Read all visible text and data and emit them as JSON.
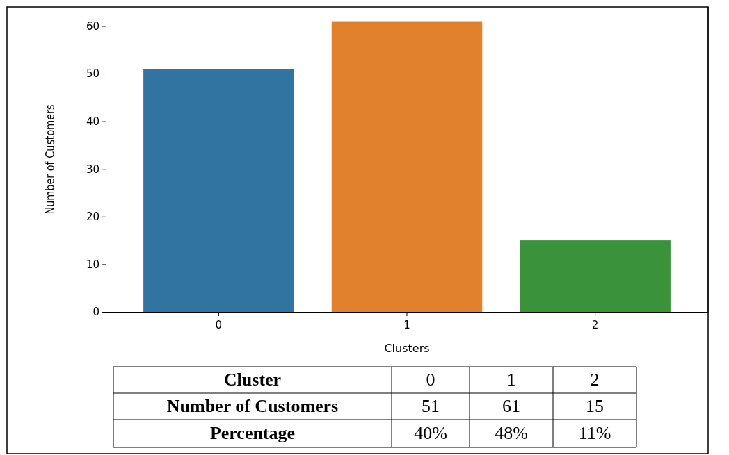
{
  "chart_data": {
    "type": "bar",
    "xlabel": "Clusters",
    "ylabel": "Number of Customers",
    "categories": [
      "0",
      "1",
      "2"
    ],
    "values": [
      51,
      61,
      15
    ],
    "colors": [
      "#3274a1",
      "#e1812c",
      "#3a923a"
    ],
    "ylim": [
      0,
      64
    ],
    "yticks": [
      0,
      10,
      20,
      30,
      40,
      50,
      60
    ],
    "annotations": [
      "Cluster",
      "0",
      "1",
      "2",
      "Number of Customers",
      "51",
      "61",
      "15",
      "Percentage",
      "40%",
      "48%",
      "11%"
    ]
  }
}
